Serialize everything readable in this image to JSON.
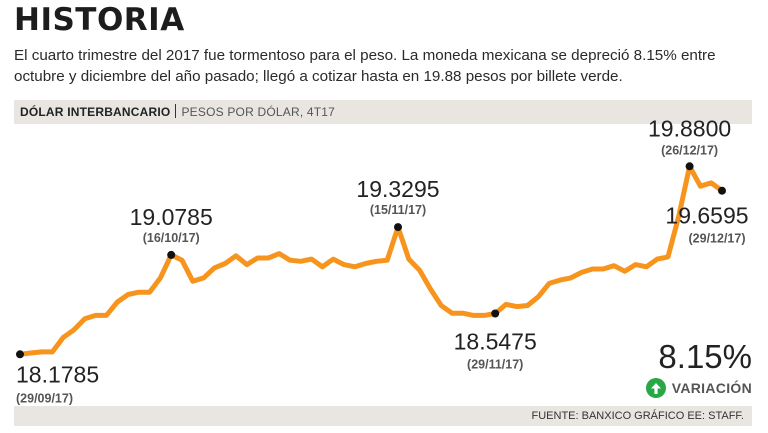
{
  "header": {
    "title": "HISTORIA",
    "subtitle": "El cuarto trimestre del 2017 fue tormentoso para el peso. La moneda mexicana se depreció 8.15% entre octubre y diciembre del año pasado; llegó a cotizar hasta en 19.88 pesos por billete verde."
  },
  "label_bar": {
    "main": "DÓLAR INTERBANCARIO",
    "secondary": "PESOS POR DÓLAR, 4T17"
  },
  "summary": {
    "value": "8.15%",
    "label": "VARIACIÓN"
  },
  "footer": {
    "source": "FUENTE: BANXICO GRÁFICO EE: STAFF."
  },
  "colors": {
    "line": "#f7941d",
    "marker": "#111111",
    "up": "#28a745"
  },
  "chart_data": {
    "type": "line",
    "title": "DÓLAR INTERBANCARIO",
    "ylabel": "PESOS POR DÓLAR, 4T17",
    "ylim": [
      18.0,
      20.1
    ],
    "values": [
      18.1785,
      18.19,
      18.2,
      18.2,
      18.33,
      18.4,
      18.5,
      18.53,
      18.53,
      18.65,
      18.72,
      18.74,
      18.74,
      18.87,
      19.0785,
      19.03,
      18.84,
      18.87,
      18.96,
      19.0,
      19.07,
      18.99,
      19.05,
      19.05,
      19.09,
      19.03,
      19.02,
      19.04,
      18.97,
      19.04,
      18.99,
      18.97,
      19.0,
      19.02,
      19.03,
      19.3295,
      19.04,
      18.94,
      18.77,
      18.62,
      18.55,
      18.55,
      18.53,
      18.53,
      18.5475,
      18.63,
      18.61,
      18.62,
      18.7,
      18.82,
      18.85,
      18.87,
      18.92,
      18.95,
      18.95,
      18.98,
      18.93,
      18.99,
      18.97,
      19.04,
      19.06,
      19.43,
      19.88,
      19.7,
      19.73,
      19.6595
    ],
    "annotations": [
      {
        "index": 0,
        "value": "18.1785",
        "date": "(29/09/17)"
      },
      {
        "index": 14,
        "value": "19.0785",
        "date": "(16/10/17)"
      },
      {
        "index": 35,
        "value": "19.3295",
        "date": "(15/11/17)"
      },
      {
        "index": 44,
        "value": "18.5475",
        "date": "(29/11/17)"
      },
      {
        "index": 62,
        "value": "19.8800",
        "date": "(26/12/17)"
      },
      {
        "index": 65,
        "value": "19.6595",
        "date": "(29/12/17)"
      }
    ]
  }
}
